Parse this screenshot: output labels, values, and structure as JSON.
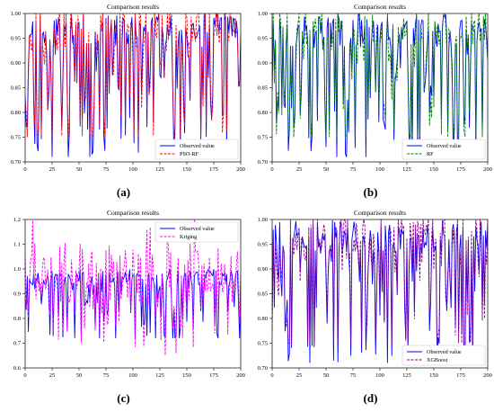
{
  "chart_data": [
    {
      "panel": "(a)",
      "type": "line",
      "title": "Comparison results",
      "xlim": [
        0,
        200
      ],
      "ylim": [
        0.7,
        1.0
      ],
      "xticks": [
        "0",
        "25",
        "50",
        "75",
        "100",
        "125",
        "150",
        "175",
        "200"
      ],
      "yticks": [
        "0.70",
        "0.75",
        "0.80",
        "0.85",
        "0.90",
        "0.95",
        "1.00"
      ],
      "legend_position": "lower-right",
      "series": [
        {
          "name": "Observed value",
          "color": "#0000ff",
          "style": "solid"
        },
        {
          "name": "PSO-RF",
          "color": "#ff0000",
          "style": "dashed"
        }
      ],
      "seed": 11
    },
    {
      "panel": "(b)",
      "type": "line",
      "title": "Comparison results",
      "xlim": [
        0,
        200
      ],
      "ylim": [
        0.7,
        1.0
      ],
      "xticks": [
        "0",
        "25",
        "50",
        "75",
        "100",
        "125",
        "150",
        "175",
        "200"
      ],
      "yticks": [
        "0.70",
        "0.75",
        "0.80",
        "0.85",
        "0.90",
        "0.95",
        "1.00"
      ],
      "legend_position": "lower-right",
      "series": [
        {
          "name": "Observed value",
          "color": "#0000ff",
          "style": "solid"
        },
        {
          "name": "RF",
          "color": "#008000",
          "style": "dashed"
        }
      ],
      "seed": 23
    },
    {
      "panel": "(c)",
      "type": "line",
      "title": "Comparison results",
      "xlim": [
        0,
        200
      ],
      "ylim": [
        0.6,
        1.2
      ],
      "xticks": [
        "0",
        "25",
        "50",
        "75",
        "100",
        "125",
        "150",
        "175",
        "200"
      ],
      "yticks": [
        "0.6",
        "0.7",
        "0.8",
        "0.9",
        "1.0",
        "1.1",
        "1.2"
      ],
      "legend_position": "upper-right",
      "series": [
        {
          "name": "Observed value",
          "color": "#0000ff",
          "style": "solid"
        },
        {
          "name": "Kriging",
          "color": "#ff00ff",
          "style": "dashed"
        }
      ],
      "seed": 37
    },
    {
      "panel": "(d)",
      "type": "line",
      "title": "Comparison results",
      "xlim": [
        0,
        200
      ],
      "ylim": [
        0.7,
        1.0
      ],
      "xticks": [
        "0",
        "25",
        "50",
        "75",
        "100",
        "125",
        "150",
        "175",
        "200"
      ],
      "yticks": [
        "0.70",
        "0.75",
        "0.80",
        "0.85",
        "0.90",
        "0.95",
        "1.00"
      ],
      "legend_position": "lower-right",
      "series": [
        {
          "name": "Observed value",
          "color": "#0000ff",
          "style": "solid"
        },
        {
          "name": "XGBoost",
          "color": "#8b008b",
          "style": "dashed"
        }
      ],
      "seed": 53
    }
  ]
}
